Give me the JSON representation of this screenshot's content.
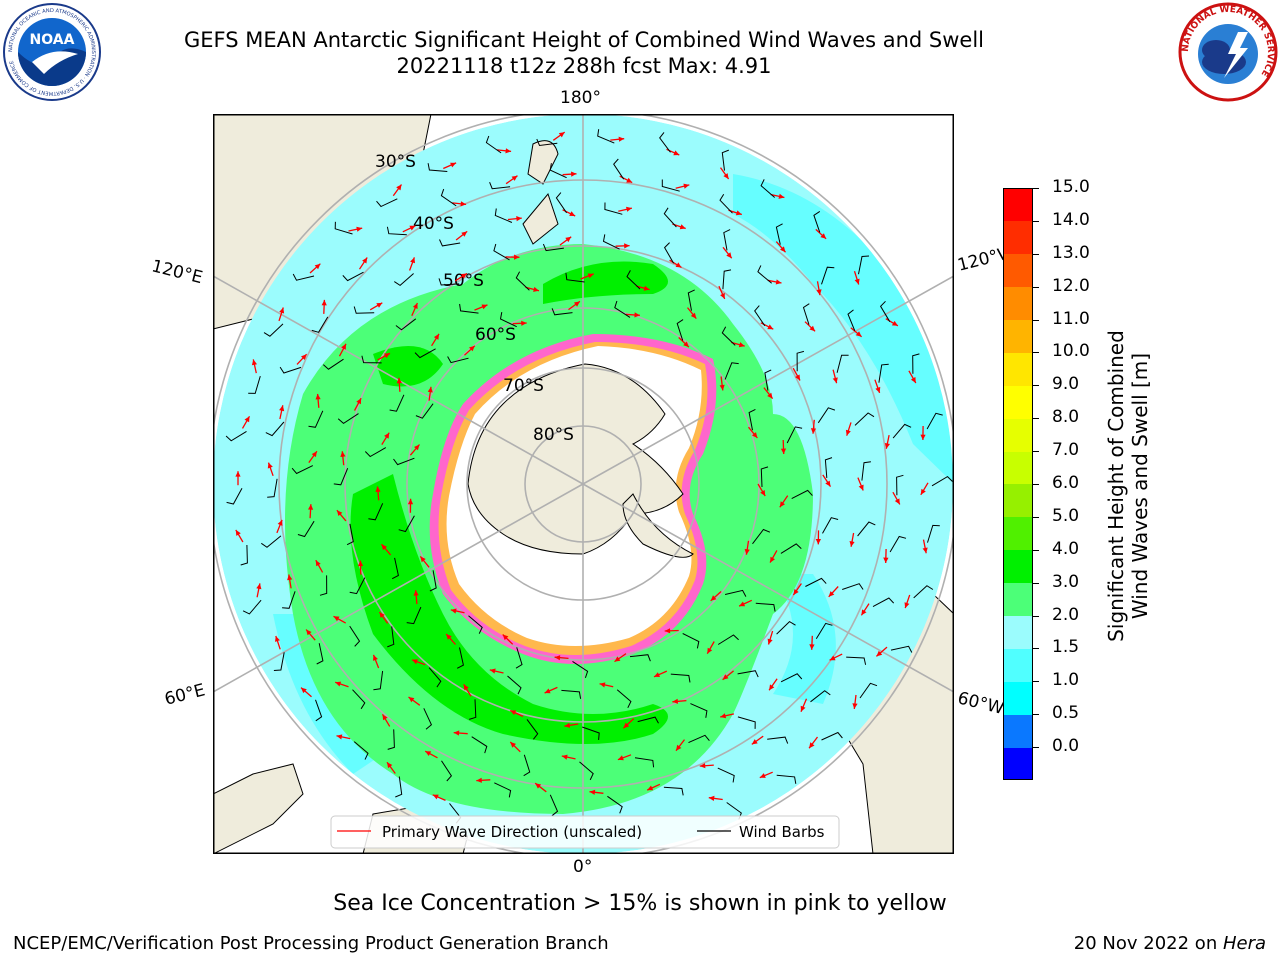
{
  "title": {
    "line1": "GEFS MEAN Antarctic Significant Height of Combined Wind Waves and Swell",
    "line2": "20221118 t12z 288h fcst   Max: 4.91"
  },
  "logos": {
    "left": {
      "name": "noaa-logo",
      "text": "NOAA",
      "ring_text": "NATIONAL OCEANIC AND ATMOSPHERIC ADMINISTRATION · U.S. DEPARTMENT OF COMMERCE"
    },
    "right": {
      "name": "nws-logo",
      "ring_text": "NATIONAL WEATHER SERVICE"
    }
  },
  "map": {
    "projection": "south polar stereographic",
    "longitude_labels": {
      "top": "180°",
      "bottom": "0°",
      "upper_left": "120°E",
      "lower_left": "60°E",
      "upper_right": "120°W",
      "lower_right": "60°W"
    },
    "latitude_labels": [
      "30°S",
      "40°S",
      "50°S",
      "60°S",
      "70°S",
      "80°S"
    ],
    "colors": {
      "land": "#efecdc",
      "ocean": "#9bfcfd",
      "ice": "#ffffff",
      "grid": "#b0b0b0",
      "arrow": "#ff0000",
      "barb": "#000000"
    },
    "legend": {
      "wave_label": "Primary Wave Direction (unscaled)",
      "barb_label": "Wind Barbs"
    }
  },
  "colorbar": {
    "label": "Significant Height of Combined\nWind Waves and Swell [m]",
    "ticks": [
      "15.0",
      "14.0",
      "13.0",
      "12.0",
      "11.0",
      "10.0",
      "9.0",
      "8.0",
      "7.0",
      "6.0",
      "5.0",
      "4.0",
      "3.0",
      "2.0",
      "1.5",
      "1.0",
      "0.5",
      "0.0"
    ],
    "colors_bottom_to_top": [
      "#0000ff",
      "#0a78ff",
      "#00ffff",
      "#50ffff",
      "#9bfcfd",
      "#4cff78",
      "#00f000",
      "#50f000",
      "#96f000",
      "#c8ff00",
      "#e6ff00",
      "#ffff00",
      "#ffe600",
      "#ffb400",
      "#ff8c00",
      "#ff5a00",
      "#ff2d00",
      "#ff0000"
    ]
  },
  "footnote": "Sea Ice Concentration > 15% is shown in pink to yellow",
  "credit": "NCEP/EMC/Verification Post Processing Product Generation Branch",
  "date": {
    "text": "20 Nov 2022 on ",
    "machine": "Hera"
  }
}
